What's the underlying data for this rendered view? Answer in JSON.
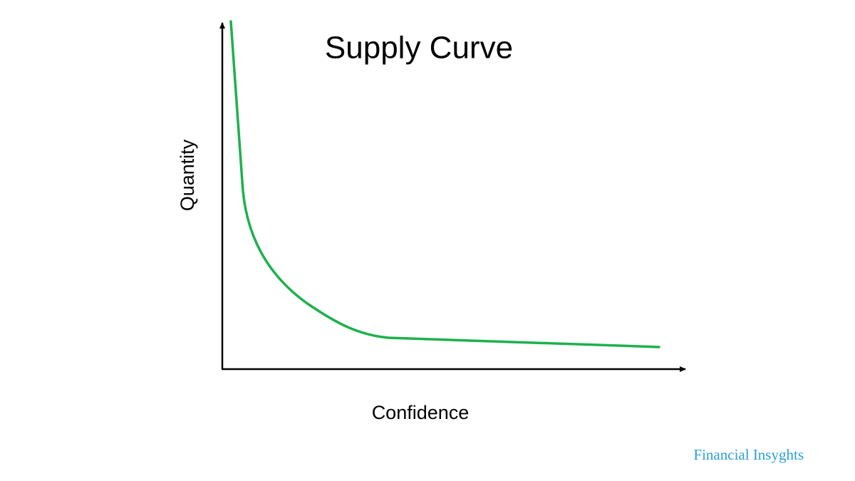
{
  "title": "Supply Curve",
  "y_axis_label": "Quantity",
  "x_axis_label": "Confidence",
  "watermark": "Financial Insyghts"
}
